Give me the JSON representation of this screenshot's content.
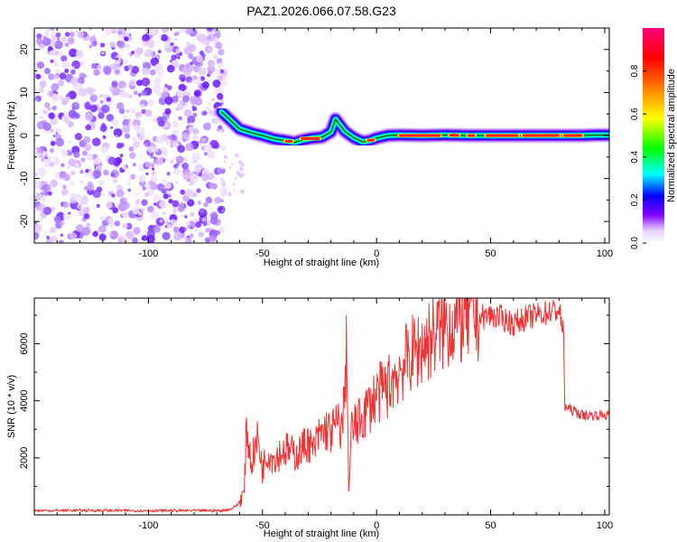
{
  "chart_data": [
    {
      "type": "heatmap",
      "title": "PAZ1.2026.066.07.58.G23",
      "xlabel": "Height of straight line (km)",
      "ylabel": "Frequency (Hz)",
      "xlim": [
        -150,
        102
      ],
      "ylim": [
        -25,
        25
      ],
      "xticks": [
        -100,
        -50,
        0,
        50,
        100
      ],
      "xtick_labels": [
        "-100",
        "-50",
        "0",
        "50",
        "100"
      ],
      "yticks": [
        -20,
        -10,
        0,
        10,
        20
      ],
      "ytick_labels": [
        "-20",
        "-10",
        "0",
        "10",
        "20"
      ],
      "noise_region_km": [
        -150,
        -68
      ],
      "ridge": {
        "description": "frequency track of the signal",
        "x": [
          -68,
          -66,
          -64,
          -62,
          -60,
          -57,
          -54,
          -50,
          -45,
          -40,
          -36,
          -32,
          -28,
          -24,
          -20,
          -19,
          -18,
          -16,
          -14,
          -10,
          -6,
          -3,
          0,
          5,
          10,
          20,
          30,
          40,
          50,
          60,
          70,
          80,
          90,
          96,
          102
        ],
        "y": [
          5.5,
          4.5,
          3.5,
          2.5,
          1.5,
          1.0,
          0.5,
          0.0,
          -0.8,
          -1.2,
          -1.6,
          -1.0,
          -0.6,
          -0.4,
          0.8,
          2.2,
          3.8,
          2.4,
          1.0,
          -0.5,
          -1.5,
          -1.2,
          -0.6,
          0.0,
          0.1,
          0.0,
          0.1,
          0.0,
          0.0,
          0.0,
          0.0,
          0.0,
          0.0,
          0.1,
          0.1
        ]
      },
      "colorbar": {
        "label": "Normalized spectral amplitude",
        "range": [
          0.0,
          1.0
        ],
        "ticks": [
          0.0,
          0.2,
          0.4,
          0.6,
          0.8
        ],
        "tick_labels": [
          "0.0",
          "0.2",
          "0.4",
          "0.6",
          "0.8"
        ],
        "colors": [
          "#ffffff",
          "#8000ff",
          "#0000ff",
          "#00ffff",
          "#00ff00",
          "#ffff00",
          "#ff8000",
          "#ff0000",
          "#ff0080"
        ]
      }
    },
    {
      "type": "line",
      "xlabel": "Height of straight line (km)",
      "ylabel": "SNR (10 * v/v)",
      "xlim": [
        -150,
        102
      ],
      "ylim": [
        0,
        7600
      ],
      "xticks": [
        -100,
        -50,
        0,
        50,
        100
      ],
      "xtick_labels": [
        "-100",
        "-50",
        "0",
        "50",
        "100"
      ],
      "yticks": [
        2000,
        4000,
        6000
      ],
      "ytick_labels": [
        "2000",
        "4000",
        "6000"
      ],
      "color": "#ee3333",
      "series": [
        {
          "name": "SNR",
          "x": [
            -150,
            -130,
            -110,
            -90,
            -75,
            -68,
            -64,
            -61,
            -58,
            -57,
            -55,
            -52,
            -50,
            -48,
            -45,
            -40,
            -35,
            -30,
            -28,
            -25,
            -22,
            -20,
            -17,
            -15,
            -13.5,
            -13,
            -12.2,
            -11,
            -8,
            -5,
            0,
            5,
            10,
            15,
            20,
            25,
            30,
            35,
            40,
            45,
            50,
            55,
            60,
            65,
            70,
            75,
            80,
            81.5,
            82,
            82.5,
            85,
            90,
            95,
            100,
            102
          ],
          "y": [
            150,
            160,
            150,
            150,
            150,
            150,
            200,
            350,
            800,
            3100,
            1800,
            2700,
            1600,
            2200,
            2000,
            2300,
            2100,
            2600,
            2200,
            2800,
            3000,
            2900,
            3200,
            3000,
            5000,
            6300,
            600,
            3000,
            3200,
            3600,
            4200,
            4500,
            5100,
            5600,
            5900,
            6300,
            6600,
            6800,
            6900,
            6900,
            7000,
            6900,
            6700,
            6900,
            7000,
            7100,
            7200,
            6500,
            6300,
            3800,
            3700,
            3500,
            3500,
            3500,
            3500
          ]
        }
      ]
    }
  ]
}
